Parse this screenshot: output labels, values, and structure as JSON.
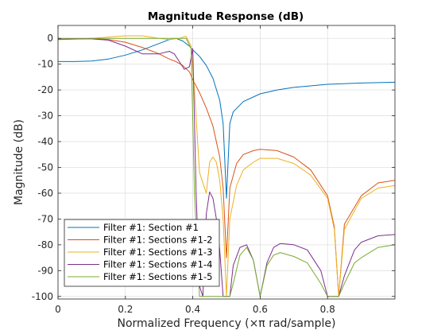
{
  "chart_data": {
    "type": "line",
    "title": "Magnitude Response (dB)",
    "xlabel": "Normalized Frequency (×π rad/sample)",
    "ylabel": "Magnitude (dB)",
    "xlim": [
      0,
      1
    ],
    "ylim": [
      -101,
      5
    ],
    "xticks": [
      0,
      0.2,
      0.4,
      0.6,
      0.8
    ],
    "xtick_labels": [
      "0",
      "0.2",
      "0.4",
      "0.6",
      "0.8"
    ],
    "yticks": [
      0,
      -10,
      -20,
      -30,
      -40,
      -50,
      -60,
      -70,
      -80,
      -90,
      -100
    ],
    "ytick_labels": [
      "0",
      "-10",
      "-20",
      "-30",
      "-40",
      "-50",
      "-60",
      "-70",
      "-80",
      "-90",
      "-100"
    ],
    "grid": true,
    "legend_position": "bottom-left",
    "series": [
      {
        "name": "Filter #1: Section #1",
        "color": "#0072BD",
        "x": [
          0,
          0.05,
          0.1,
          0.15,
          0.2,
          0.25,
          0.3,
          0.33,
          0.35,
          0.37,
          0.39,
          0.4,
          0.42,
          0.44,
          0.46,
          0.48,
          0.49,
          0.5,
          0.51,
          0.52,
          0.55,
          0.6,
          0.65,
          0.7,
          0.8,
          0.9,
          1.0
        ],
        "y": [
          -9,
          -9,
          -8.8,
          -8,
          -6.5,
          -4.5,
          -2,
          -0.5,
          0,
          -1,
          -3,
          -4.5,
          -7,
          -10.5,
          -15.5,
          -24,
          -33,
          -62,
          -33,
          -28.5,
          -24.5,
          -21.5,
          -20,
          -19,
          -17.8,
          -17.3,
          -17
        ]
      },
      {
        "name": "Filter #1: Sections #1-2",
        "color": "#D95319",
        "x": [
          0,
          0.05,
          0.1,
          0.15,
          0.2,
          0.25,
          0.3,
          0.33,
          0.35,
          0.37,
          0.39,
          0.4,
          0.42,
          0.44,
          0.46,
          0.48,
          0.49,
          0.5,
          0.51,
          0.53,
          0.55,
          0.58,
          0.6,
          0.65,
          0.7,
          0.75,
          0.8,
          0.82,
          0.833,
          0.85,
          0.9,
          0.95,
          1.0
        ],
        "y": [
          -0.5,
          -0.2,
          0,
          -0.5,
          -1.5,
          -3.5,
          -6,
          -8,
          -9,
          -10.5,
          -13,
          -16,
          -21,
          -27,
          -34,
          -46,
          -58,
          -85,
          -58,
          -48.5,
          -45,
          -43.5,
          -43,
          -43.5,
          -46,
          -51,
          -61,
          -73,
          -100,
          -72,
          -61,
          -56,
          -55
        ]
      },
      {
        "name": "Filter #1: Sections #1-3",
        "color": "#EDB120",
        "x": [
          0,
          0.05,
          0.1,
          0.15,
          0.2,
          0.25,
          0.3,
          0.33,
          0.36,
          0.38,
          0.395,
          0.405,
          0.42,
          0.44,
          0.45,
          0.46,
          0.47,
          0.48,
          0.49,
          0.5,
          0.51,
          0.53,
          0.55,
          0.58,
          0.6,
          0.65,
          0.7,
          0.75,
          0.8,
          0.82,
          0.833,
          0.85,
          0.9,
          0.95,
          1.0
        ],
        "y": [
          -0.5,
          -0.3,
          0,
          0.5,
          1,
          1,
          0,
          -0.5,
          0,
          0.8,
          -3,
          -20,
          -52,
          -60,
          -48,
          -46,
          -48,
          -55,
          -70,
          -100,
          -70,
          -57,
          -51,
          -48,
          -46.5,
          -46.5,
          -48.5,
          -53,
          -62,
          -74,
          -100,
          -74,
          -62,
          -58,
          -57
        ]
      },
      {
        "name": "Filter #1: Sections #1-4",
        "color": "#7E2F8E",
        "x": [
          0,
          0.05,
          0.1,
          0.15,
          0.2,
          0.25,
          0.3,
          0.33,
          0.345,
          0.36,
          0.375,
          0.39,
          0.4,
          0.41,
          0.42,
          0.43,
          0.44,
          0.45,
          0.46,
          0.47,
          0.48,
          0.49,
          0.5,
          0.51,
          0.52,
          0.54,
          0.56,
          0.58,
          0.6,
          0.62,
          0.64,
          0.66,
          0.7,
          0.74,
          0.78,
          0.8,
          0.82,
          0.833,
          0.85,
          0.88,
          0.9,
          0.95,
          1.0
        ],
        "y": [
          -0.3,
          -0.2,
          -0.2,
          -0.7,
          -3,
          -6,
          -6,
          -5,
          -6,
          -9,
          -12,
          -11,
          -4,
          -60,
          -96,
          -100,
          -68,
          -59.5,
          -62,
          -70,
          -82,
          -100,
          -100,
          -100,
          -88,
          -81,
          -80,
          -86,
          -100,
          -87,
          -81,
          -79.5,
          -80,
          -82,
          -90,
          -100,
          -100,
          -100,
          -92,
          -82,
          -79,
          -76.5,
          -76
        ]
      },
      {
        "name": "Filter #1: Sections #1-5",
        "color": "#77AC30",
        "x": [
          0,
          0.05,
          0.1,
          0.15,
          0.2,
          0.25,
          0.3,
          0.33,
          0.36,
          0.38,
          0.395,
          0.405,
          0.42,
          0.44,
          0.45,
          0.46,
          0.47,
          0.48,
          0.49,
          0.5,
          0.51,
          0.52,
          0.54,
          0.56,
          0.58,
          0.6,
          0.62,
          0.64,
          0.66,
          0.7,
          0.74,
          0.78,
          0.8,
          0.82,
          0.833,
          0.85,
          0.88,
          0.9,
          0.95,
          1.0
        ],
        "y": [
          0,
          0,
          0,
          0,
          0,
          0,
          0,
          0,
          0,
          0,
          -4,
          -60,
          -100,
          -100,
          -100,
          -100,
          -100,
          -100,
          -100,
          -100,
          -100,
          -95,
          -84,
          -81,
          -86,
          -100,
          -88,
          -84,
          -83,
          -84.5,
          -87,
          -95,
          -100,
          -100,
          -100,
          -95,
          -87,
          -85,
          -81,
          -80
        ]
      }
    ]
  }
}
